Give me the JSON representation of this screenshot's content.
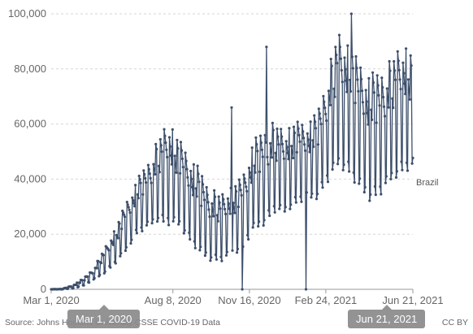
{
  "chart_data": {
    "type": "line",
    "title": "",
    "xlabel": "",
    "ylabel": "",
    "ylim": [
      0,
      100000
    ],
    "xlim": [
      "2020-03-01",
      "2021-06-21"
    ],
    "y_ticks": [
      "0",
      "20,000",
      "40,000",
      "60,000",
      "80,000",
      "100,000"
    ],
    "x_ticks": [
      "Mar 1, 2020",
      "Aug 8, 2020",
      "Nov 16, 2020",
      "Feb 24, 2021",
      "Jun 21, 2021"
    ],
    "grid": "horizontal dashed",
    "series": [
      {
        "name": "Brazil",
        "color": "#3d4f6b",
        "x": [
          "2020-03-01",
          "2020-03-15",
          "2020-03-29",
          "2020-04-12",
          "2020-04-26",
          "2020-05-10",
          "2020-05-24",
          "2020-06-07",
          "2020-06-21",
          "2020-07-05",
          "2020-07-19",
          "2020-08-02",
          "2020-08-16",
          "2020-08-30",
          "2020-09-13",
          "2020-09-27",
          "2020-10-11",
          "2020-10-25",
          "2020-11-08",
          "2020-11-22",
          "2020-12-06",
          "2020-12-20",
          "2021-01-03",
          "2021-01-17",
          "2021-01-31",
          "2021-02-14",
          "2021-02-28",
          "2021-03-14",
          "2021-03-28",
          "2021-04-11",
          "2021-04-25",
          "2021-05-09",
          "2021-05-23",
          "2021-06-06",
          "2021-06-21"
        ],
        "low": [
          0,
          0,
          200,
          1000,
          3000,
          5000,
          8000,
          12000,
          18000,
          20000,
          22000,
          20000,
          20000,
          15000,
          10000,
          8000,
          8000,
          10000,
          12000,
          18000,
          20000,
          25000,
          25000,
          28000,
          30000,
          30000,
          35000,
          40000,
          38000,
          32000,
          28000,
          30000,
          35000,
          38000,
          40000
        ],
        "high": [
          0,
          100,
          1500,
          4000,
          8000,
          15000,
          22000,
          32000,
          40000,
          47000,
          55000,
          62000,
          56000,
          50000,
          45000,
          38000,
          35000,
          38000,
          42000,
          55000,
          60000,
          62000,
          58000,
          62000,
          62000,
          65000,
          80000,
          95000,
          90000,
          85000,
          80000,
          82000,
          85000,
          90000,
          88000
        ]
      }
    ]
  },
  "footer": {
    "source": "Source: Johns Hopkins University CSSE COVID-19 Data",
    "license": "CC BY"
  },
  "range_handles": {
    "start": "Mar 1, 2020",
    "end": "Jun 21, 2021"
  }
}
